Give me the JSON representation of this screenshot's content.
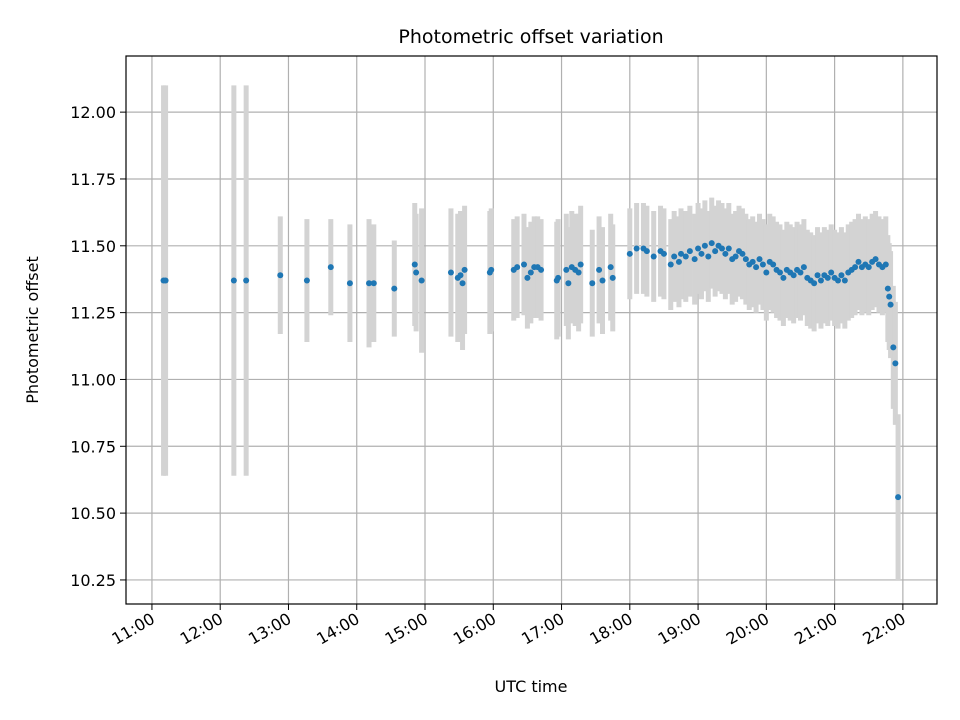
{
  "chart_data": {
    "type": "scatter",
    "title": "Photometric offset variation",
    "xlabel": "UTC time",
    "ylabel": "Photometric offset",
    "x_unit": "hours UTC",
    "xlim": [
      10.62,
      22.5
    ],
    "ylim": [
      10.16,
      12.21
    ],
    "x_ticks": [
      11,
      12,
      13,
      14,
      15,
      16,
      17,
      18,
      19,
      20,
      21,
      22
    ],
    "x_tick_labels": [
      "11:00",
      "12:00",
      "13:00",
      "14:00",
      "15:00",
      "16:00",
      "17:00",
      "18:00",
      "19:00",
      "20:00",
      "21:00",
      "22:00"
    ],
    "y_ticks": [
      10.25,
      10.5,
      10.75,
      11.0,
      11.25,
      11.5,
      11.75,
      12.0
    ],
    "y_tick_labels": [
      "10.25",
      "10.50",
      "10.75",
      "11.00",
      "11.25",
      "11.50",
      "11.75",
      "12.00"
    ],
    "grid": true,
    "colors": {
      "points": "#1f77b4",
      "errorbars": "#d3d3d3",
      "grid": "#b0b0b0"
    },
    "series": [
      {
        "points": [
          [
            11.17,
            11.37,
            0.73
          ],
          [
            11.2,
            11.37,
            0.73
          ],
          [
            12.2,
            11.37,
            0.73
          ],
          [
            12.38,
            11.37,
            0.73
          ],
          [
            12.88,
            11.39,
            0.22
          ],
          [
            13.27,
            11.37,
            0.23
          ],
          [
            13.62,
            11.42,
            0.18
          ],
          [
            13.9,
            11.36,
            0.22
          ],
          [
            14.18,
            11.36,
            0.24
          ],
          [
            14.25,
            11.36,
            0.22
          ],
          [
            14.55,
            11.34,
            0.18
          ],
          [
            14.85,
            11.43,
            0.23
          ],
          [
            14.87,
            11.4,
            0.22
          ],
          [
            14.95,
            11.37,
            0.27
          ],
          [
            15.38,
            11.4,
            0.24
          ],
          [
            15.48,
            11.38,
            0.24
          ],
          [
            15.52,
            11.39,
            0.24
          ],
          [
            15.55,
            11.36,
            0.25
          ],
          [
            15.58,
            11.41,
            0.24
          ],
          [
            15.95,
            11.4,
            0.23
          ],
          [
            15.97,
            11.41,
            0.23
          ],
          [
            16.3,
            11.41,
            0.19
          ],
          [
            16.35,
            11.42,
            0.19
          ],
          [
            16.45,
            11.43,
            0.19
          ],
          [
            16.5,
            11.38,
            0.19
          ],
          [
            16.55,
            11.4,
            0.19
          ],
          [
            16.6,
            11.42,
            0.19
          ],
          [
            16.65,
            11.42,
            0.19
          ],
          [
            16.7,
            11.41,
            0.19
          ],
          [
            16.93,
            11.37,
            0.22
          ],
          [
            16.95,
            11.38,
            0.22
          ],
          [
            17.07,
            11.41,
            0.21
          ],
          [
            17.1,
            11.36,
            0.21
          ],
          [
            17.15,
            11.42,
            0.21
          ],
          [
            17.2,
            11.41,
            0.21
          ],
          [
            17.25,
            11.4,
            0.22
          ],
          [
            17.28,
            11.43,
            0.22
          ],
          [
            17.45,
            11.36,
            0.2
          ],
          [
            17.55,
            11.41,
            0.2
          ],
          [
            17.6,
            11.37,
            0.2
          ],
          [
            17.72,
            11.42,
            0.2
          ],
          [
            17.75,
            11.38,
            0.2
          ],
          [
            18.0,
            11.47,
            0.17
          ],
          [
            18.1,
            11.49,
            0.17
          ],
          [
            18.2,
            11.49,
            0.17
          ],
          [
            18.25,
            11.48,
            0.17
          ],
          [
            18.35,
            11.46,
            0.17
          ],
          [
            18.45,
            11.48,
            0.17
          ],
          [
            18.5,
            11.47,
            0.17
          ],
          [
            18.6,
            11.43,
            0.17
          ],
          [
            18.65,
            11.46,
            0.17
          ],
          [
            18.72,
            11.44,
            0.17
          ],
          [
            18.75,
            11.47,
            0.17
          ],
          [
            18.82,
            11.46,
            0.17
          ],
          [
            18.88,
            11.48,
            0.17
          ],
          [
            18.95,
            11.45,
            0.17
          ],
          [
            19.0,
            11.49,
            0.17
          ],
          [
            19.05,
            11.47,
            0.17
          ],
          [
            19.1,
            11.5,
            0.17
          ],
          [
            19.15,
            11.46,
            0.17
          ],
          [
            19.2,
            11.51,
            0.17
          ],
          [
            19.25,
            11.48,
            0.17
          ],
          [
            19.3,
            11.5,
            0.17
          ],
          [
            19.35,
            11.49,
            0.17
          ],
          [
            19.4,
            11.47,
            0.17
          ],
          [
            19.45,
            11.49,
            0.17
          ],
          [
            19.5,
            11.45,
            0.17
          ],
          [
            19.55,
            11.46,
            0.17
          ],
          [
            19.6,
            11.48,
            0.17
          ],
          [
            19.65,
            11.47,
            0.17
          ],
          [
            19.7,
            11.45,
            0.17
          ],
          [
            19.75,
            11.43,
            0.17
          ],
          [
            19.8,
            11.44,
            0.17
          ],
          [
            19.85,
            11.42,
            0.17
          ],
          [
            19.9,
            11.45,
            0.17
          ],
          [
            19.95,
            11.43,
            0.17
          ],
          [
            20.0,
            11.4,
            0.18
          ],
          [
            20.05,
            11.44,
            0.18
          ],
          [
            20.1,
            11.43,
            0.18
          ],
          [
            20.15,
            11.41,
            0.18
          ],
          [
            20.2,
            11.4,
            0.18
          ],
          [
            20.25,
            11.38,
            0.18
          ],
          [
            20.3,
            11.41,
            0.18
          ],
          [
            20.35,
            11.4,
            0.18
          ],
          [
            20.4,
            11.39,
            0.18
          ],
          [
            20.45,
            11.41,
            0.18
          ],
          [
            20.5,
            11.4,
            0.18
          ],
          [
            20.55,
            11.42,
            0.18
          ],
          [
            20.6,
            11.38,
            0.18
          ],
          [
            20.65,
            11.37,
            0.18
          ],
          [
            20.7,
            11.36,
            0.18
          ],
          [
            20.75,
            11.39,
            0.18
          ],
          [
            20.8,
            11.37,
            0.18
          ],
          [
            20.85,
            11.39,
            0.18
          ],
          [
            20.9,
            11.38,
            0.18
          ],
          [
            20.95,
            11.4,
            0.18
          ],
          [
            21.0,
            11.38,
            0.18
          ],
          [
            21.05,
            11.37,
            0.18
          ],
          [
            21.1,
            11.39,
            0.18
          ],
          [
            21.15,
            11.37,
            0.18
          ],
          [
            21.2,
            11.4,
            0.18
          ],
          [
            21.25,
            11.41,
            0.18
          ],
          [
            21.3,
            11.42,
            0.18
          ],
          [
            21.35,
            11.44,
            0.18
          ],
          [
            21.4,
            11.42,
            0.18
          ],
          [
            21.45,
            11.43,
            0.18
          ],
          [
            21.5,
            11.42,
            0.18
          ],
          [
            21.55,
            11.44,
            0.18
          ],
          [
            21.6,
            11.45,
            0.18
          ],
          [
            21.65,
            11.43,
            0.18
          ],
          [
            21.7,
            11.42,
            0.18
          ],
          [
            21.75,
            11.43,
            0.18
          ],
          [
            21.78,
            11.34,
            0.2
          ],
          [
            21.8,
            11.31,
            0.2
          ],
          [
            21.82,
            11.28,
            0.2
          ],
          [
            21.86,
            11.12,
            0.23
          ],
          [
            21.89,
            11.06,
            0.23
          ],
          [
            21.93,
            10.56,
            0.31
          ]
        ]
      }
    ]
  }
}
